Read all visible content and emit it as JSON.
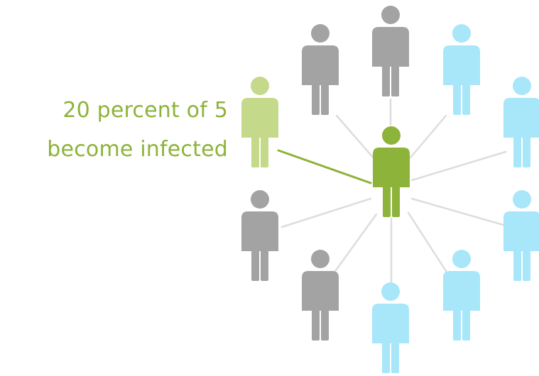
{
  "caption": {
    "line1": "20 percent of 5",
    "line2": "become infected"
  },
  "colors": {
    "center": "#8db33a",
    "infected": "#c4d98a",
    "gray": "#a3a3a3",
    "blue": "#a8e6fa",
    "text": "#8db33a",
    "line": "#dddddd",
    "infected_line": "#8db33a"
  },
  "people": [
    {
      "id": "center",
      "role": "center"
    },
    {
      "id": "infected",
      "role": "infected"
    },
    {
      "id": "gray-top-left",
      "role": "gray"
    },
    {
      "id": "gray-top",
      "role": "gray"
    },
    {
      "id": "gray-left",
      "role": "gray"
    },
    {
      "id": "gray-bottom-left",
      "role": "gray"
    },
    {
      "id": "blue-top-right",
      "role": "blue"
    },
    {
      "id": "blue-right",
      "role": "blue"
    },
    {
      "id": "blue-lower-right",
      "role": "blue"
    },
    {
      "id": "blue-bottom-right",
      "role": "blue"
    },
    {
      "id": "blue-bottom",
      "role": "blue"
    }
  ]
}
